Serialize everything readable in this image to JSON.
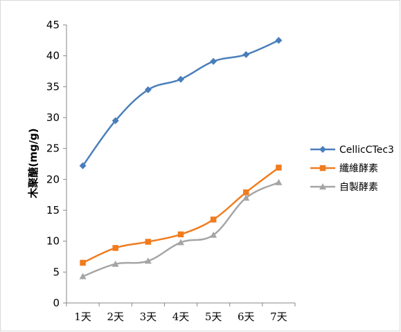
{
  "chart_data": {
    "type": "line",
    "categories": [
      "1天",
      "2天",
      "3天",
      "4天",
      "5天",
      "6天",
      "7天"
    ],
    "ylabel": "木聚醣(mg/g)",
    "xlabel": "",
    "title": "",
    "ylim": [
      0,
      45
    ],
    "yticks": [
      0,
      5,
      10,
      15,
      20,
      25,
      30,
      35,
      40,
      45
    ],
    "grid": false,
    "legend_position": "right",
    "series": [
      {
        "name": "CellicCTec3",
        "color": "#4a7ebb",
        "marker": "diamond",
        "values": [
          22.2,
          29.5,
          34.5,
          36.2,
          39.1,
          40.2,
          42.5
        ]
      },
      {
        "name": "纖維酵素",
        "color": "#f07c1e",
        "marker": "square",
        "values": [
          6.5,
          8.9,
          9.9,
          11.1,
          13.5,
          17.9,
          21.9
        ]
      },
      {
        "name": "自製酵素",
        "color": "#a5a5a5",
        "marker": "triangle",
        "values": [
          4.3,
          6.3,
          6.8,
          9.8,
          11.0,
          17.0,
          19.5
        ]
      }
    ]
  }
}
